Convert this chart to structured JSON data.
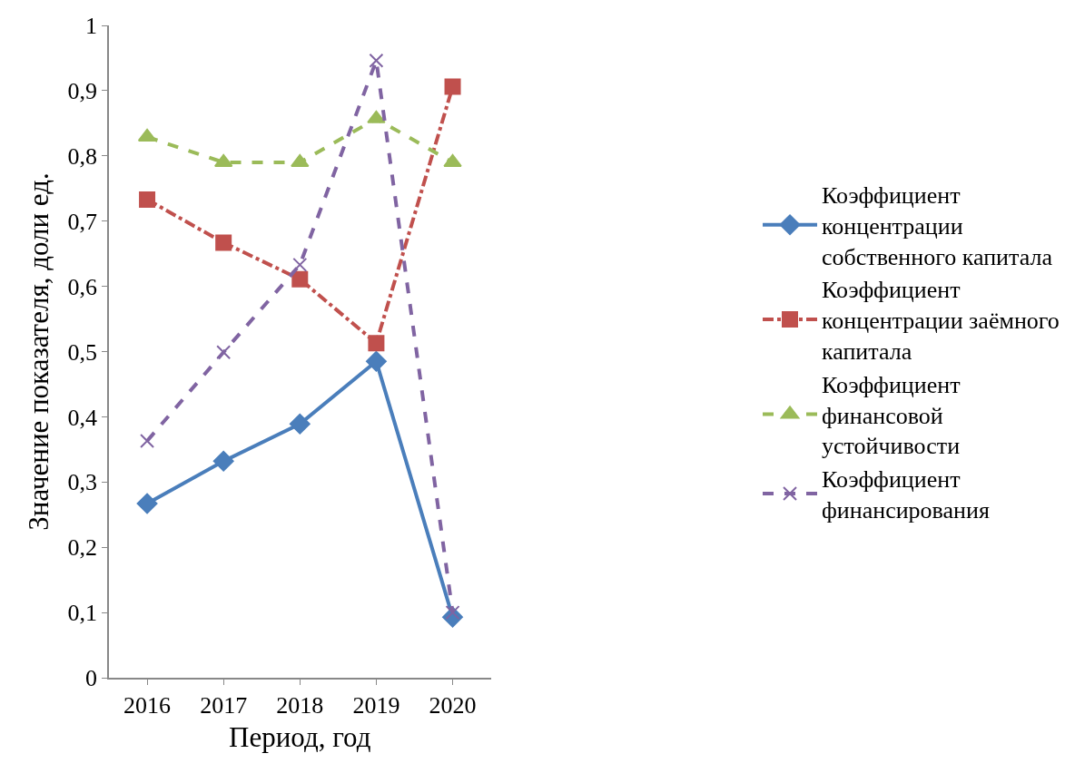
{
  "chart_data": {
    "type": "line",
    "xlabel": "Период, год",
    "ylabel": "Значение показателя, доли ед.",
    "categories": [
      "2016",
      "2017",
      "2018",
      "2019",
      "2020"
    ],
    "ylim": [
      0,
      1
    ],
    "yticks": [
      0,
      {
        "value": 0.1,
        "label": "0,1"
      },
      {
        "value": 0.2,
        "label": "0,2"
      },
      {
        "value": 0.3,
        "label": "0,3"
      },
      {
        "value": 0.4,
        "label": "0,4"
      },
      {
        "value": 0.5,
        "label": "0,5"
      },
      {
        "value": 0.6,
        "label": "0,6"
      },
      {
        "value": 0.7,
        "label": "0,7"
      },
      {
        "value": 0.8,
        "label": "0,8"
      },
      {
        "value": 0.9,
        "label": "0,9"
      },
      1
    ],
    "legend": "right",
    "series": [
      {
        "name": "Коэффициент концентрации собственного капитала",
        "color": "#4a7ebb",
        "marker": "diamond",
        "line_style": "solid",
        "values": [
          0.267,
          0.332,
          0.389,
          0.485,
          0.093
        ]
      },
      {
        "name": "Коэффициент концентрации заёмного капитала",
        "color": "#c0504d",
        "marker": "square",
        "line_style": "dashdot",
        "values": [
          0.733,
          0.667,
          0.611,
          0.513,
          0.906
        ]
      },
      {
        "name": "Коэффициент финансовой устойчивости",
        "color": "#9bbb59",
        "marker": "triangle",
        "line_style": "dashed",
        "values": [
          0.829,
          0.79,
          0.79,
          0.857,
          0.79
        ]
      },
      {
        "name": "Коэффициент финансирования",
        "color": "#8064a2",
        "marker": "cross",
        "line_style": "dashed",
        "values": [
          0.363,
          0.499,
          0.633,
          0.946,
          0.1
        ]
      }
    ]
  }
}
